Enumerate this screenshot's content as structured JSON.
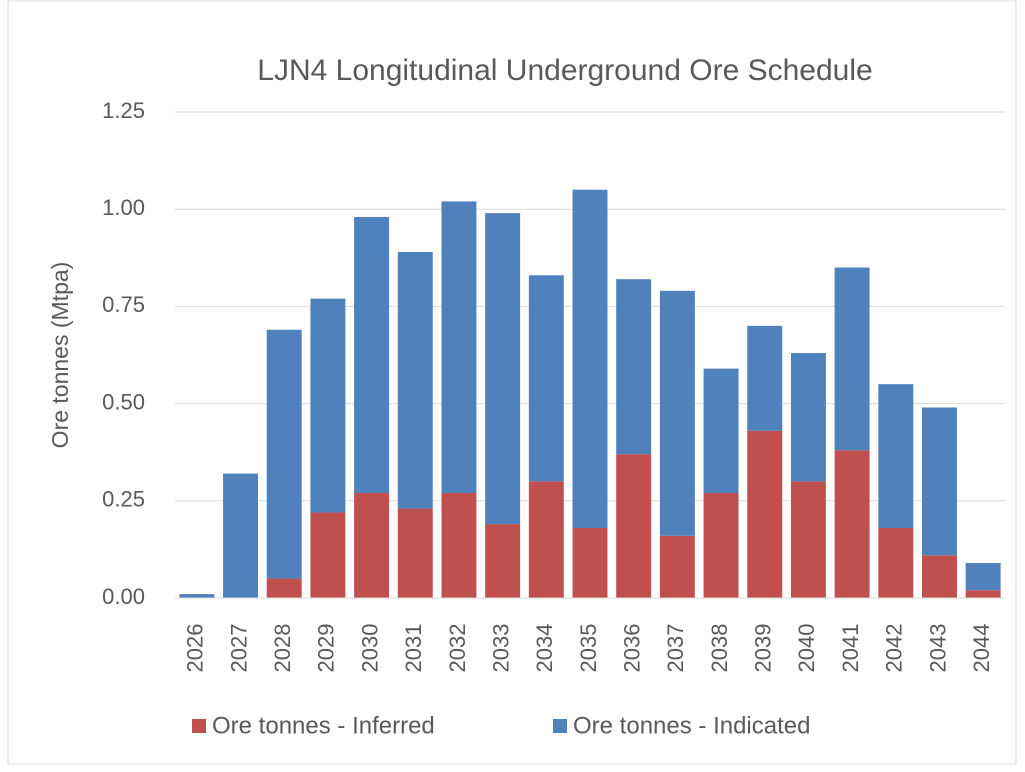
{
  "chart_data": {
    "type": "stacked_bar",
    "title": "LJN4 Longitudinal Underground Ore Schedule",
    "y_label": "Ore tonnes (Mtpa)",
    "categories": [
      "2026",
      "2027",
      "2028",
      "2029",
      "2030",
      "2031",
      "2032",
      "2033",
      "2034",
      "2035",
      "2036",
      "2037",
      "2038",
      "2039",
      "2040",
      "2041",
      "2042",
      "2043",
      "2044"
    ],
    "series": [
      {
        "name": "Ore tonnes - Inferred",
        "color": "#c0504d",
        "values": [
          0,
          0,
          0.05,
          0.22,
          0.27,
          0.23,
          0.27,
          0.19,
          0.3,
          0.18,
          0.37,
          0.16,
          0.27,
          0.43,
          0.3,
          0.38,
          0.18,
          0.11,
          0.02
        ]
      },
      {
        "name": "Ore tonnes - Indicated",
        "color": "#4f81bd",
        "values": [
          0.01,
          0.32,
          0.64,
          0.55,
          0.71,
          0.66,
          0.75,
          0.8,
          0.53,
          0.87,
          0.45,
          0.63,
          0.32,
          0.27,
          0.33,
          0.47,
          0.37,
          0.38,
          0.07
        ]
      }
    ],
    "ylim": [
      0,
      1.25
    ],
    "yticks": [
      {
        "value": 0,
        "label": "0.00"
      },
      0.25,
      {
        "value": 0.5,
        "label": "0.50"
      },
      0.75,
      {
        "value": 1,
        "label": "1.00"
      },
      1.25
    ],
    "grid": true,
    "legend": "bottom"
  }
}
